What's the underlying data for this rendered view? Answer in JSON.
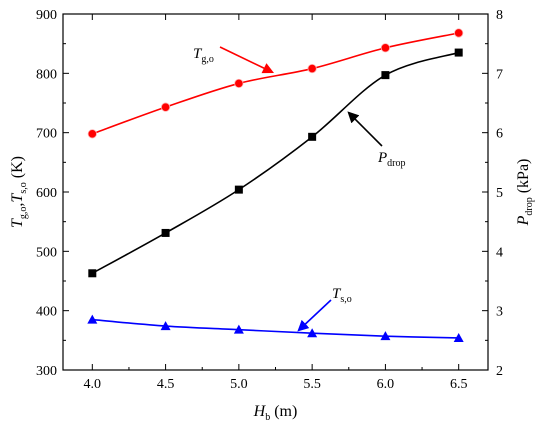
{
  "chart_data": {
    "type": "line",
    "x": [
      4.0,
      4.5,
      5.0,
      5.5,
      6.0,
      6.5
    ],
    "x_tick_labels": [
      "4.0",
      "4.5",
      "5.0",
      "5.5",
      "6.0",
      "6.5"
    ],
    "xlim": [
      3.8,
      6.7
    ],
    "xlabel": {
      "main": "H",
      "sub": "b",
      "unit": " (m)"
    },
    "y_left": {
      "lim": [
        300,
        900
      ],
      "ticks": [
        300,
        400,
        500,
        600,
        700,
        800,
        900
      ],
      "label": {
        "p1": "T",
        "s1": "g,o",
        "mid": ",T",
        "s2": "s,o",
        "unit": " (K)"
      }
    },
    "y_right": {
      "lim": [
        2,
        8
      ],
      "ticks": [
        2,
        3,
        4,
        5,
        6,
        7,
        8
      ],
      "label": {
        "main": "P",
        "sub": "drop",
        "unit": " (kPa)"
      }
    },
    "series": [
      {
        "name": {
          "main": "T",
          "sub": "g,o"
        },
        "axis": "left",
        "color": "#ff0000",
        "marker": "circle",
        "values": [
          698,
          743,
          783,
          808,
          843,
          868
        ]
      },
      {
        "name": {
          "main": "P",
          "sub": "drop"
        },
        "axis": "right",
        "color": "#000000",
        "marker": "square",
        "values": [
          3.63,
          4.31,
          5.04,
          5.93,
          6.97,
          7.35
        ]
      },
      {
        "name": {
          "main": "T",
          "sub": "s,o"
        },
        "axis": "left",
        "color": "#0000ff",
        "marker": "triangle",
        "values": [
          385,
          374,
          368,
          362,
          357,
          354
        ]
      }
    ],
    "grid": false,
    "legend": "none"
  }
}
